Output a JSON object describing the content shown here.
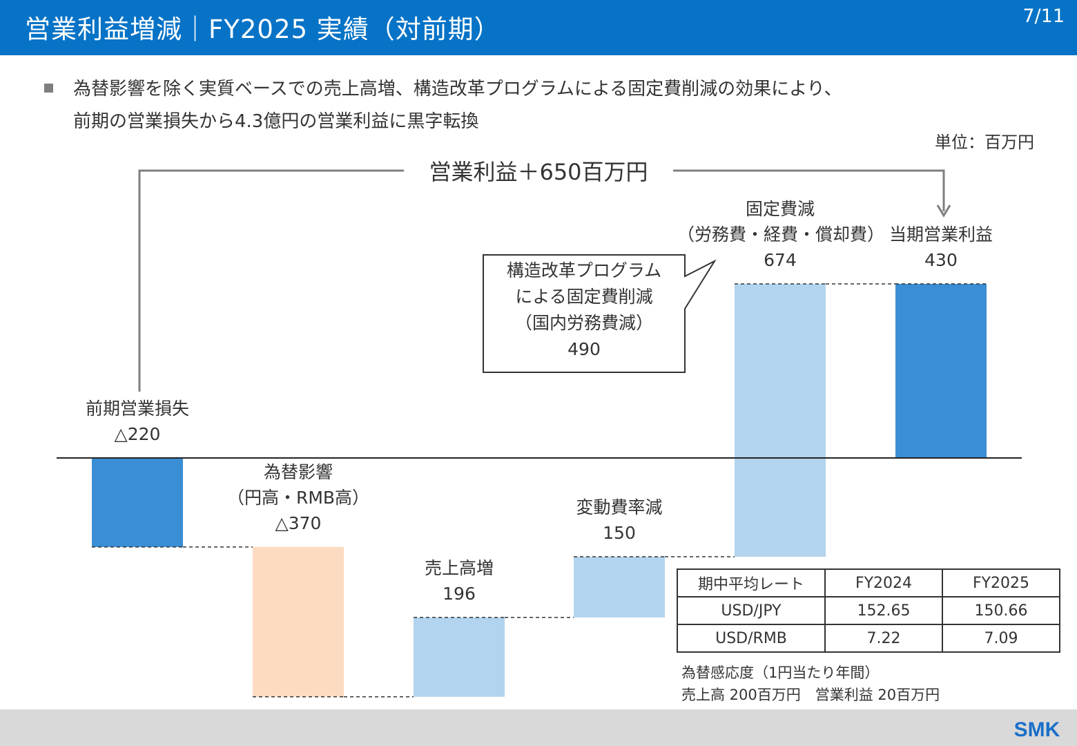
{
  "header": {
    "title": "営業利益増減｜FY2025 実績（対前期）",
    "page": "7/11"
  },
  "bullet": {
    "line1": "為替影響を除く実質ベースでの売上高増、構造改革プログラムによる固定費削減の効果により、",
    "line2": "前期の営業損失から4.3億円の営業利益に黒字転換"
  },
  "unit": "単位：百万円",
  "colors": {
    "header": "#0673c7",
    "total_bar": "#3a8ed3",
    "decrease_bar": "#fcdbc1",
    "increase_bar": "#b2d4ee",
    "footer": "#d9d9d9"
  },
  "chart_data": {
    "type": "bar",
    "subtype": "waterfall",
    "categories": [
      "前期営業損失",
      "為替影響",
      "売上高増",
      "変動費率減",
      "固定費減",
      "当期営業利益"
    ],
    "steps": [
      {
        "label_lines": [
          "前期営業損失"
        ],
        "value": -220,
        "value_label": "△220",
        "kind": "total"
      },
      {
        "label_lines": [
          "為替影響",
          "（円高・RMB高）"
        ],
        "value": -370,
        "value_label": "△370",
        "kind": "decrease"
      },
      {
        "label_lines": [
          "売上高増"
        ],
        "value": 196,
        "value_label": "196",
        "kind": "increase"
      },
      {
        "label_lines": [
          "変動費率減"
        ],
        "value": 150,
        "value_label": "150",
        "kind": "increase"
      },
      {
        "label_lines": [
          "固定費減",
          "（労務費・経費・償却費）"
        ],
        "value": 674,
        "value_label": "674",
        "kind": "increase"
      },
      {
        "label_lines": [
          "当期営業利益"
        ],
        "value": 430,
        "value_label": "430",
        "kind": "total"
      }
    ],
    "summary_arrow": "営業利益＋650百万円",
    "callout": {
      "lines": [
        "構造改革プログラム",
        "による固定費削減",
        "（国内労務費減）",
        "490"
      ]
    }
  },
  "fx_table": {
    "header": [
      "期中平均レート",
      "FY2024",
      "FY2025"
    ],
    "rows": [
      [
        "USD/JPY",
        "152.65",
        "150.66"
      ],
      [
        "USD/RMB",
        "7.22",
        "7.09"
      ]
    ]
  },
  "fx_note": {
    "line1": "為替感応度（1円当たり年間）",
    "line2": "売上高 200百万円　営業利益 20百万円"
  },
  "logo": "SMK"
}
